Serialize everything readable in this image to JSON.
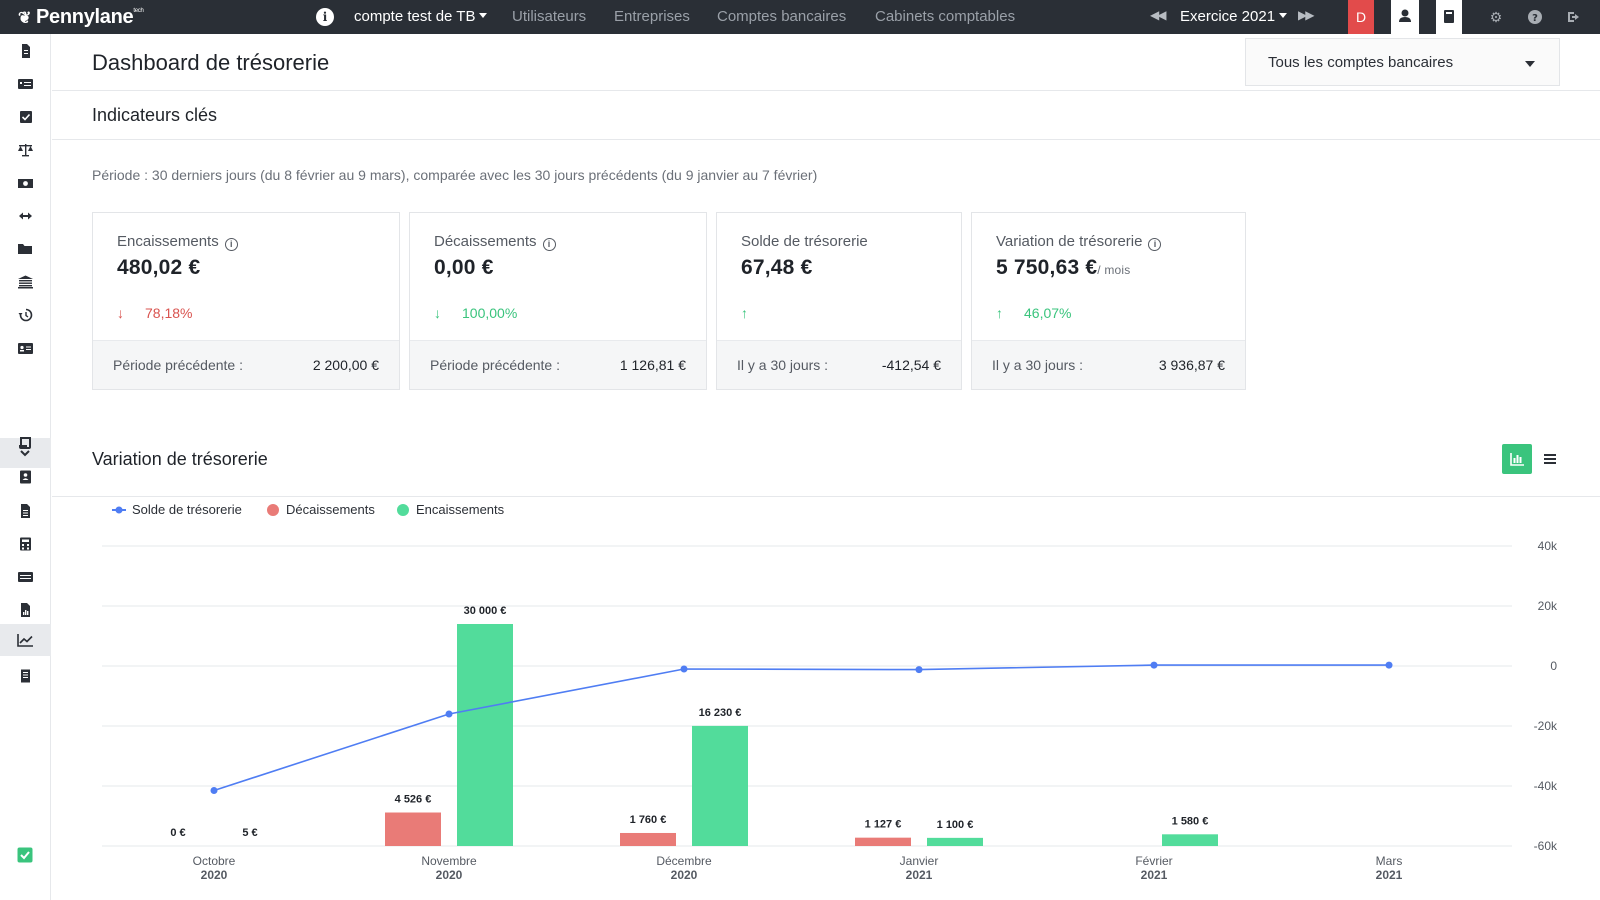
{
  "topbar": {
    "logo": "Pennylane",
    "logo_sup": "tech",
    "company": "compte test de TB",
    "nav": [
      "Utilisateurs",
      "Entreprises",
      "Comptes bancaires",
      "Cabinets comptables"
    ],
    "exercise": "Exercice 2021",
    "user_initial": "D"
  },
  "page": {
    "title": "Dashboard de trésorerie",
    "account_select": "Tous les comptes bancaires"
  },
  "indicators": {
    "title": "Indicateurs clés",
    "period": "Période : 30 derniers jours (du 8 février au 9 mars), comparée avec les 30 jours précédents (du 9 janvier au 7 février)",
    "cards": [
      {
        "label": "Encaissements",
        "value": "480,02 €",
        "trend": "78,18%",
        "trend_dir": "down",
        "prev_label": "Période précédente :",
        "prev_value": "2 200,00 €"
      },
      {
        "label": "Décaissements",
        "value": "0,00 €",
        "trend": "100,00%",
        "trend_dir": "down",
        "prev_label": "Période précédente :",
        "prev_value": "1 126,81 €"
      },
      {
        "label": "Solde de trésorerie",
        "value": "67,48 €",
        "trend": "",
        "trend_dir": "up",
        "prev_label": "Il y a 30 jours :",
        "prev_value": "-412,54 €"
      },
      {
        "label": "Variation de trésorerie",
        "value": "5 750,63 €",
        "unit": "/ mois",
        "trend": "46,07%",
        "trend_dir": "up",
        "prev_label": "Il y a 30 jours :",
        "prev_value": "3 936,87 €"
      }
    ]
  },
  "variation": {
    "title": "Variation de trésorerie"
  },
  "colors": {
    "green": "#3ac47d",
    "bar_green": "#52dc9b",
    "red": "#e97b77",
    "blue": "#4f7df3",
    "topbar": "#2a2f36"
  },
  "chart_data": {
    "type": "bar",
    "categories": [
      [
        "Octobre",
        "2020"
      ],
      [
        "Novembre",
        "2020"
      ],
      [
        "Décembre",
        "2020"
      ],
      [
        "Janvier",
        "2021"
      ],
      [
        "Février",
        "2021"
      ],
      [
        "Mars",
        "2021"
      ]
    ],
    "series": [
      {
        "name": "Solde de trésorerie",
        "type": "line",
        "color": "#4f7df3",
        "values": [
          -41500,
          -16000,
          -1000,
          -1200,
          300,
          300
        ]
      },
      {
        "name": "Décaissements",
        "type": "bar",
        "color": "#e97b77",
        "values": [
          0,
          4526,
          1760,
          1127,
          null,
          null
        ],
        "labels": [
          "0 €",
          "4 526 €",
          "1 760 €",
          "1 127 €",
          "",
          ""
        ]
      },
      {
        "name": "Encaissements",
        "type": "bar",
        "color": "#52dc9b",
        "values": [
          5,
          30000,
          16230,
          1100,
          1580,
          null
        ],
        "labels": [
          "5 €",
          "30 000 €",
          "16 230 €",
          "1 100 €",
          "1 580 €",
          ""
        ]
      }
    ],
    "y_ticks": [
      "40k",
      "20k",
      "0",
      "-20k",
      "-40k",
      "-60k"
    ],
    "ylim": [
      -60000,
      40000
    ],
    "bar_ylim": [
      0,
      35000
    ],
    "legend_position": "top-left",
    "grid": true
  }
}
